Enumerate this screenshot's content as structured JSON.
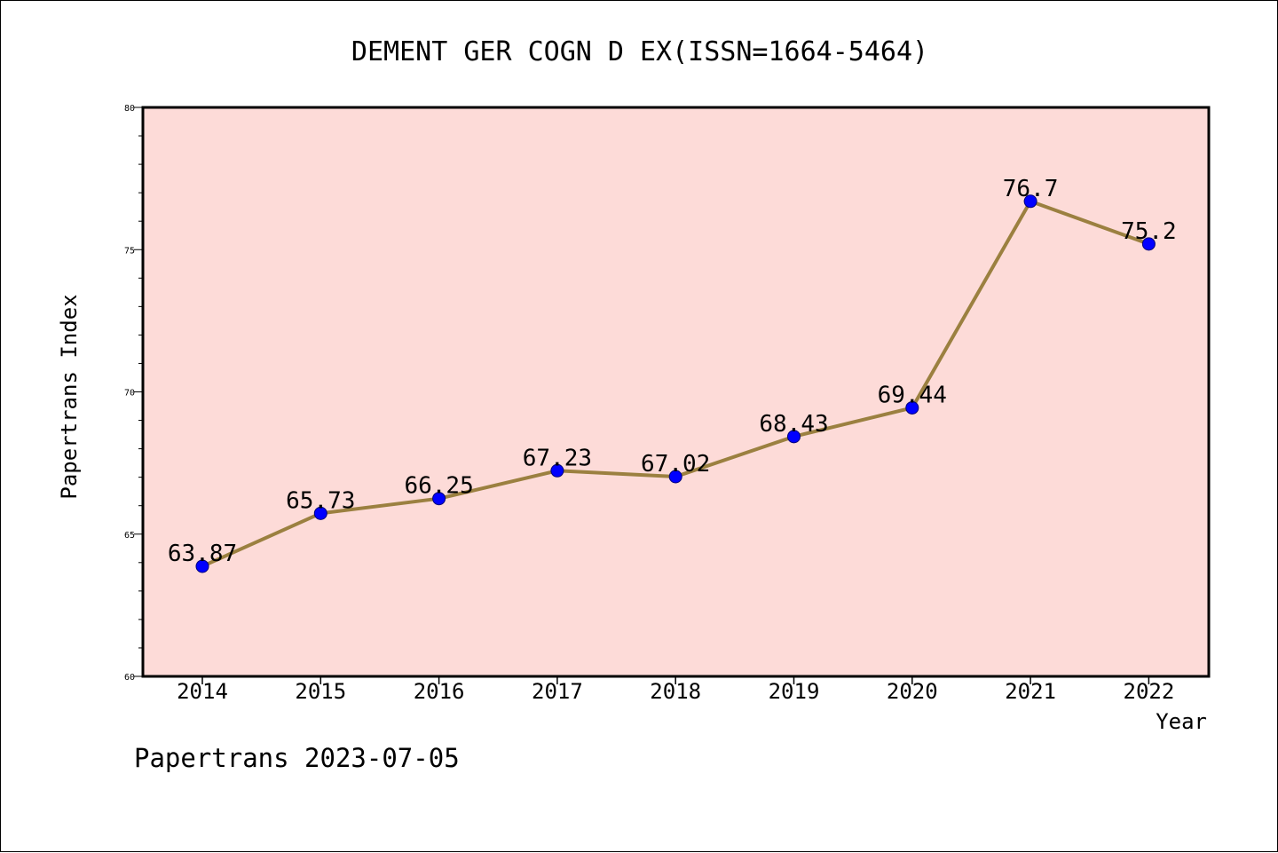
{
  "chart_data": {
    "type": "line",
    "title": "DEMENT GER COGN D EX(ISSN=1664-5464)",
    "xlabel": "Year",
    "ylabel": "Papertrans Index",
    "categories": [
      "2014",
      "2015",
      "2016",
      "2017",
      "2018",
      "2019",
      "2020",
      "2021",
      "2022"
    ],
    "series": [
      {
        "values": [
          63.87,
          65.73,
          66.25,
          67.23,
          67.02,
          68.43,
          69.44,
          76.7,
          75.2
        ],
        "labels": [
          "63.87",
          "65.73",
          "66.25",
          "67.23",
          "67.02",
          "68.43",
          "69.44",
          "76.7",
          "75.2"
        ]
      }
    ],
    "ylim": [
      60,
      80
    ],
    "yticks": [
      "60",
      "65",
      "70",
      "75",
      "80"
    ],
    "grid": false,
    "colors": {
      "plot_background": "#fddbd8",
      "line": "#9b8040",
      "marker": "#0000ff",
      "axes": "#000000"
    }
  },
  "footer": "Papertrans 2023-07-05"
}
